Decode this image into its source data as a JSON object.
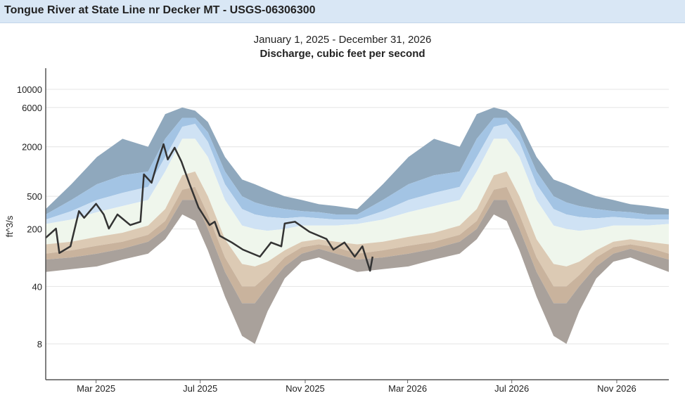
{
  "header": {
    "title": "Tongue River at State Line nr Decker MT - USGS-06306300"
  },
  "chart_data": {
    "type": "area",
    "title": "January 1, 2025 - December 31, 2026",
    "subtitle": "Discharge, cubic feet per second",
    "xlabel": "",
    "ylabel": "ft^3/s",
    "yscale": "log",
    "ylim": [
      3,
      25000
    ],
    "xlim_days": [
      0,
      730
    ],
    "y_ticks": [
      {
        "v": 10000,
        "label": "10000"
      },
      {
        "v": 6000,
        "label": "6000"
      },
      {
        "v": 2000,
        "label": "2000"
      },
      {
        "v": 500,
        "label": "500"
      },
      {
        "v": 200,
        "label": "200"
      },
      {
        "v": 40,
        "label": "40"
      },
      {
        "v": 8,
        "label": "8"
      }
    ],
    "x_ticks": [
      {
        "day": 59,
        "label": "Mar 2025"
      },
      {
        "day": 181,
        "label": "Jul 2025"
      },
      {
        "day": 304,
        "label": "Nov 2025"
      },
      {
        "day": 424,
        "label": "Mar 2026"
      },
      {
        "day": 546,
        "label": "Jul 2026"
      },
      {
        "day": 669,
        "label": "Nov 2026"
      }
    ],
    "grid": true,
    "percentile_bands": {
      "day_of_year": [
        0,
        30,
        60,
        90,
        120,
        140,
        160,
        175,
        190,
        210,
        230,
        245,
        260,
        280,
        300,
        320,
        340,
        365
      ],
      "boundaries": [
        "max",
        "p95",
        "p90",
        "p75",
        "p25",
        "p10",
        "p5",
        "min"
      ],
      "colors": [
        "#8fa8bd",
        "#a3c4e4",
        "#cfe2f4",
        "#eff6ec",
        "#dccab4",
        "#c9b39d",
        "#a9a19b"
      ],
      "values": [
        [
          350,
          300,
          260,
          230,
          130,
          100,
          85,
          60
        ],
        [
          700,
          450,
          330,
          260,
          140,
          110,
          90,
          65
        ],
        [
          1500,
          700,
          450,
          320,
          160,
          125,
          100,
          70
        ],
        [
          2500,
          900,
          550,
          380,
          180,
          140,
          115,
          85
        ],
        [
          2000,
          1000,
          650,
          450,
          220,
          170,
          140,
          100
        ],
        [
          5000,
          2500,
          1500,
          1000,
          350,
          250,
          200,
          150
        ],
        [
          6000,
          4500,
          3500,
          2500,
          900,
          600,
          450,
          300
        ],
        [
          5500,
          4500,
          3800,
          2500,
          1000,
          650,
          450,
          250
        ],
        [
          4000,
          3000,
          2300,
          1500,
          500,
          300,
          200,
          110
        ],
        [
          1500,
          1000,
          700,
          450,
          150,
          90,
          60,
          30
        ],
        [
          800,
          500,
          350,
          220,
          75,
          40,
          25,
          10
        ],
        [
          700,
          420,
          300,
          200,
          70,
          40,
          25,
          8
        ],
        [
          600,
          380,
          280,
          190,
          80,
          55,
          40,
          20
        ],
        [
          500,
          350,
          270,
          200,
          110,
          90,
          70,
          50
        ],
        [
          450,
          330,
          280,
          220,
          140,
          120,
          100,
          80
        ],
        [
          400,
          320,
          270,
          220,
          150,
          130,
          115,
          90
        ],
        [
          380,
          300,
          260,
          220,
          140,
          120,
          100,
          75
        ],
        [
          350,
          300,
          260,
          230,
          130,
          100,
          85,
          60
        ]
      ]
    },
    "series": [
      {
        "name": "Discharge",
        "color": "#333333",
        "day": [
          0,
          12,
          16,
          29,
          39,
          45,
          59,
          68,
          74,
          84,
          99,
          111,
          115,
          124,
          130,
          138,
          143,
          151,
          159,
          168,
          179,
          192,
          198,
          204,
          218,
          231,
          251,
          264,
          276,
          280,
          292,
          309,
          329,
          337,
          350,
          362,
          371,
          380,
          383
        ],
        "values": [
          156,
          202,
          102,
          123,
          330,
          273,
          405,
          300,
          202,
          300,
          223,
          245,
          923,
          730,
          1200,
          2150,
          1400,
          1950,
          1320,
          730,
          365,
          223,
          245,
          165,
          137,
          112,
          92,
          137,
          123,
          233,
          245,
          185,
          151,
          112,
          137,
          92,
          123,
          62,
          92
        ]
      }
    ]
  }
}
